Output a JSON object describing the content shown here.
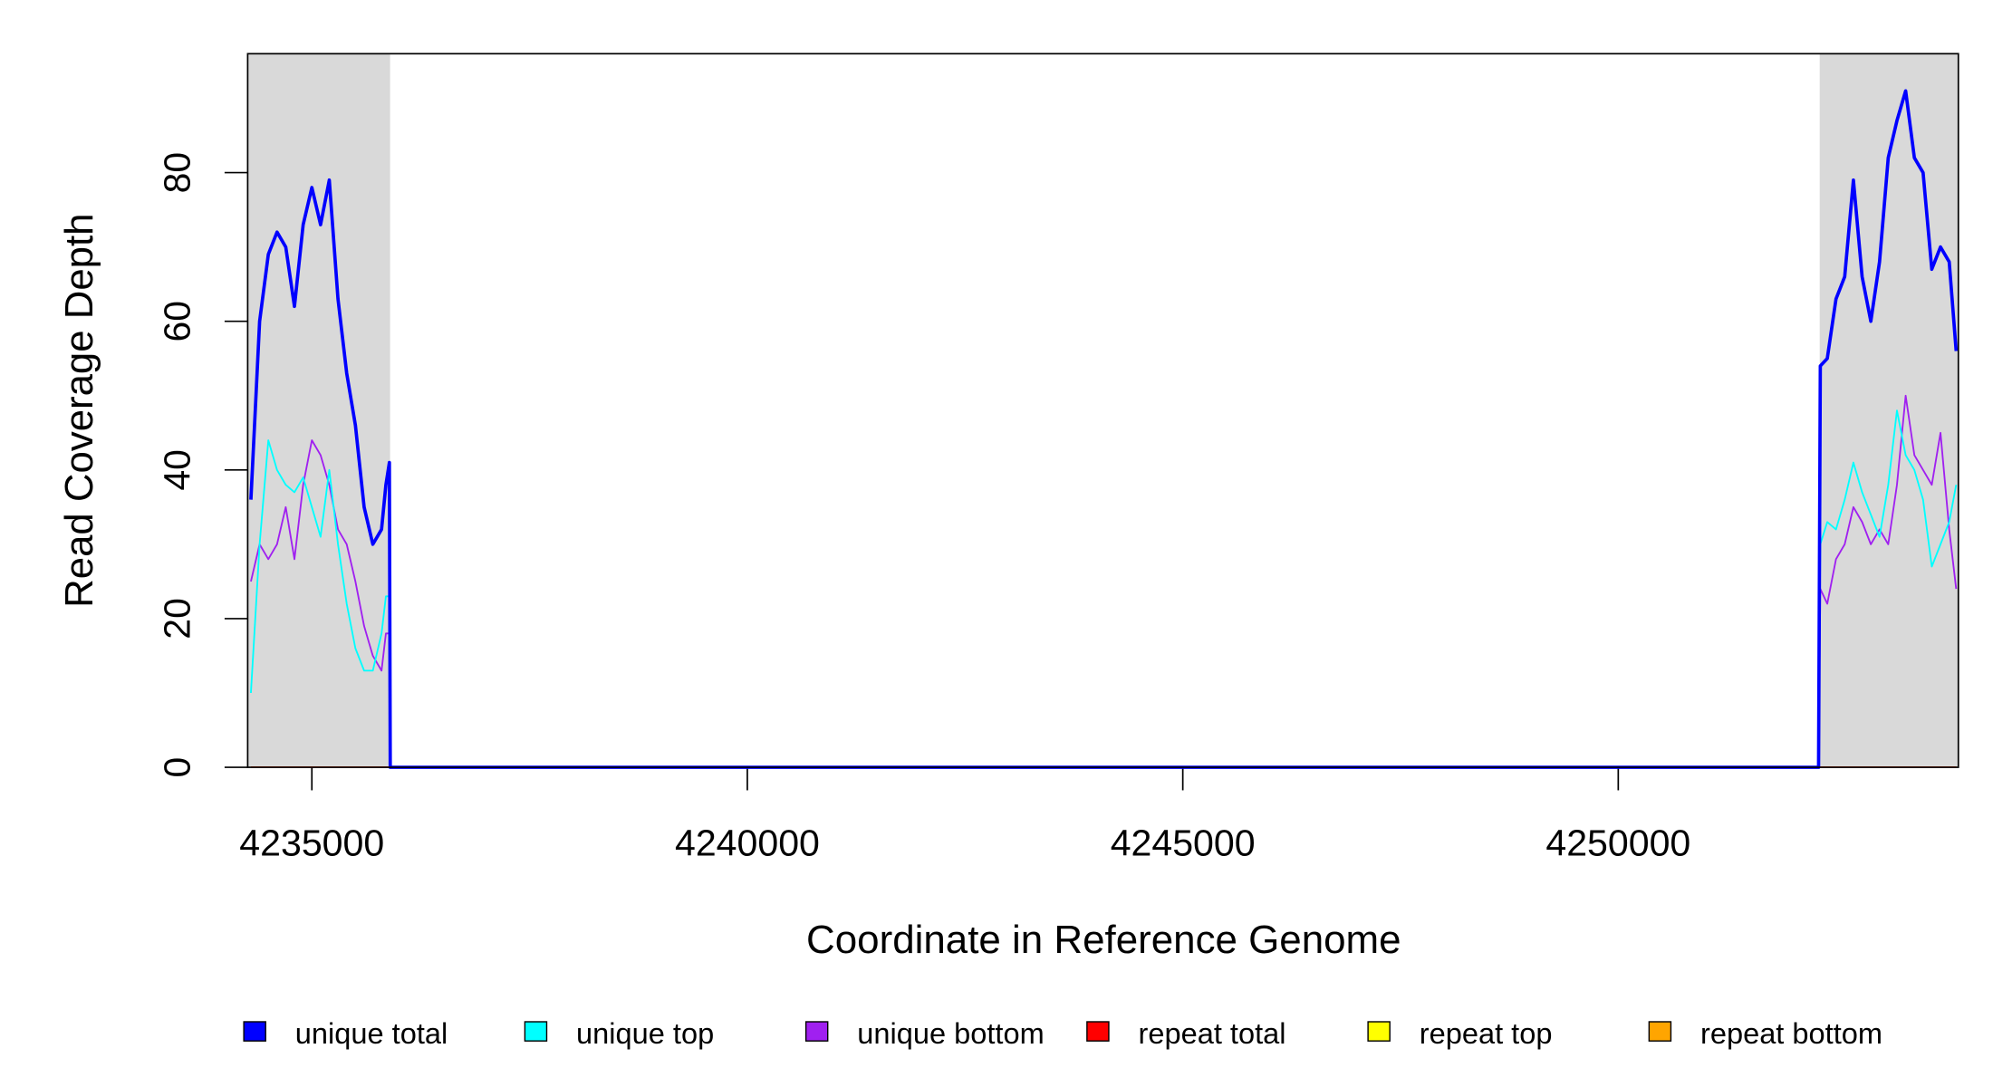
{
  "chart_data": {
    "type": "line",
    "x_label": "Coordinate in Reference Genome",
    "y_label": "Read Coverage Depth",
    "x": [
      4234300,
      4234400,
      4234500,
      4234600,
      4234700,
      4234800,
      4234900,
      4235000,
      4235100,
      4235200,
      4235300,
      4235400,
      4235500,
      4235600,
      4235700,
      4235800,
      4235850,
      4235890,
      4235900,
      4252300,
      4252320,
      4252400,
      4252500,
      4252600,
      4252700,
      4252800,
      4252900,
      4253000,
      4253100,
      4253200,
      4253300,
      4253400,
      4253500,
      4253600,
      4253700,
      4253800,
      4253880
    ],
    "series": [
      {
        "name": "unique total",
        "color": "#0000ff",
        "values": [
          36,
          60,
          69,
          72,
          70,
          62,
          73,
          78,
          73,
          79,
          63,
          53,
          46,
          35,
          30,
          32,
          38,
          41,
          0,
          0,
          54,
          55,
          63,
          66,
          79,
          66,
          60,
          68,
          82,
          87,
          91,
          82,
          80,
          67,
          70,
          68,
          56
        ]
      },
      {
        "name": "unique top",
        "color": "#00ffff",
        "values": [
          10,
          30,
          44,
          40,
          38,
          37,
          39,
          35,
          31,
          40,
          30,
          22,
          16,
          13,
          13,
          18,
          23,
          23,
          0,
          0,
          30,
          33,
          32,
          36,
          41,
          37,
          34,
          31,
          38,
          48,
          42,
          40,
          36,
          27,
          30,
          33,
          38
        ]
      },
      {
        "name": "unique bottom",
        "color": "#a020f0",
        "values": [
          25,
          30,
          28,
          30,
          35,
          28,
          38,
          44,
          42,
          38,
          32,
          30,
          25,
          19,
          15,
          13,
          18,
          18,
          0,
          0,
          24,
          22,
          28,
          30,
          35,
          33,
          30,
          32,
          30,
          38,
          50,
          42,
          40,
          38,
          45,
          32,
          24
        ]
      },
      {
        "name": "repeat total",
        "color": "#ff0000",
        "values": [
          0,
          0,
          0,
          0,
          0,
          0,
          0,
          0,
          0,
          0,
          0,
          0,
          0,
          0,
          0,
          0,
          0,
          0,
          0,
          0,
          0,
          0,
          0,
          0,
          0,
          0,
          0,
          0,
          0,
          0,
          0,
          0,
          0,
          0,
          0,
          0,
          0
        ]
      },
      {
        "name": "repeat top",
        "color": "#ffff00",
        "values": [
          0,
          0,
          0,
          0,
          0,
          0,
          0,
          0,
          0,
          0,
          0,
          0,
          0,
          0,
          0,
          0,
          0,
          0,
          0,
          0,
          0,
          0,
          0,
          0,
          0,
          0,
          0,
          0,
          0,
          0,
          0,
          0,
          0,
          0,
          0,
          0,
          0
        ]
      },
      {
        "name": "repeat bottom",
        "color": "#ffa500",
        "values": [
          0,
          0,
          0,
          0,
          0,
          0,
          0,
          0,
          0,
          0,
          0,
          0,
          0,
          0,
          0,
          0,
          0,
          0,
          0,
          0,
          0,
          0,
          0,
          0,
          0,
          0,
          0,
          0,
          0,
          0,
          0,
          0,
          0,
          0,
          0,
          0,
          0
        ]
      }
    ],
    "xlim": [
      4234263,
      4253905
    ],
    "ylim": [
      0,
      96
    ],
    "xticks": [
      4235000,
      4240000,
      4245000,
      4250000
    ],
    "yticks": [
      0,
      20,
      40,
      60,
      80
    ],
    "shaded_regions": [
      [
        4234263,
        4235898
      ],
      [
        4252313,
        4253905
      ]
    ],
    "shade_color": "#d9d9d9",
    "legend": "bottom"
  }
}
